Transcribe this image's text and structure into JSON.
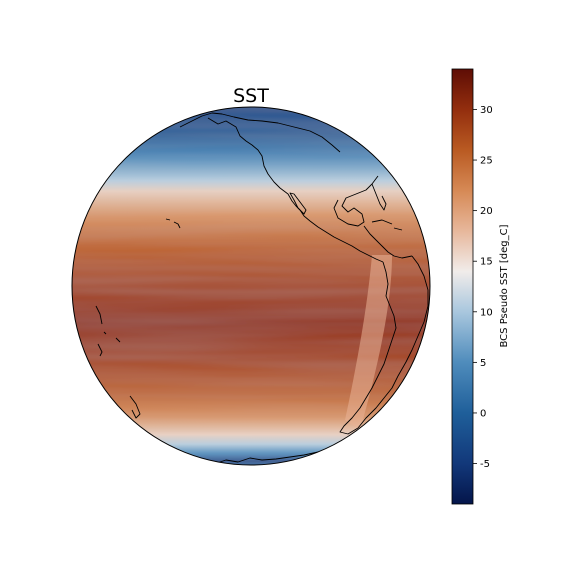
{
  "map": {
    "title": "SST",
    "projection": "orthographic",
    "field": "BCS Pseudo SST",
    "units": "deg_C"
  },
  "colorbar": {
    "label": "BCS Pseudo SST [deg_C]",
    "vmin": -9,
    "vmax": 34,
    "ticks": [
      "-5",
      "0",
      "5",
      "10",
      "15",
      "20",
      "25",
      "30"
    ],
    "colormap": "blue-white-red (balance)",
    "stops": [
      {
        "value": -9,
        "color": "#04154a"
      },
      {
        "value": -5,
        "color": "#12387a"
      },
      {
        "value": 0,
        "color": "#1f5f9a"
      },
      {
        "value": 5,
        "color": "#4f8cbc"
      },
      {
        "value": 10,
        "color": "#a9c7de"
      },
      {
        "value": 14,
        "color": "#f1ecea"
      },
      {
        "value": 18,
        "color": "#e7b79b"
      },
      {
        "value": 22,
        "color": "#d68955"
      },
      {
        "value": 26,
        "color": "#b95a22"
      },
      {
        "value": 30,
        "color": "#932e0e"
      },
      {
        "value": 34,
        "color": "#5e0d05"
      }
    ]
  },
  "chart_data": {
    "type": "heatmap",
    "title": "SST",
    "colorbar_label": "BCS Pseudo SST [deg_C]",
    "color_range": [
      -9,
      34
    ],
    "latitude_profile": [
      {
        "lat": 90,
        "sst": -2
      },
      {
        "lat": 70,
        "sst": 0
      },
      {
        "lat": 58,
        "sst": 5
      },
      {
        "lat": 48,
        "sst": 11
      },
      {
        "lat": 44,
        "sst": 16
      },
      {
        "lat": 35,
        "sst": 21
      },
      {
        "lat": 25,
        "sst": 25
      },
      {
        "lat": 12,
        "sst": 28
      },
      {
        "lat": 0,
        "sst": 30
      },
      {
        "lat": -12,
        "sst": 28
      },
      {
        "lat": -25,
        "sst": 25
      },
      {
        "lat": -35,
        "sst": 21
      },
      {
        "lat": -44,
        "sst": 16
      },
      {
        "lat": -50,
        "sst": 11
      },
      {
        "lat": -58,
        "sst": 5
      },
      {
        "lat": -70,
        "sst": 0
      },
      {
        "lat": -90,
        "sst": -2
      }
    ]
  }
}
